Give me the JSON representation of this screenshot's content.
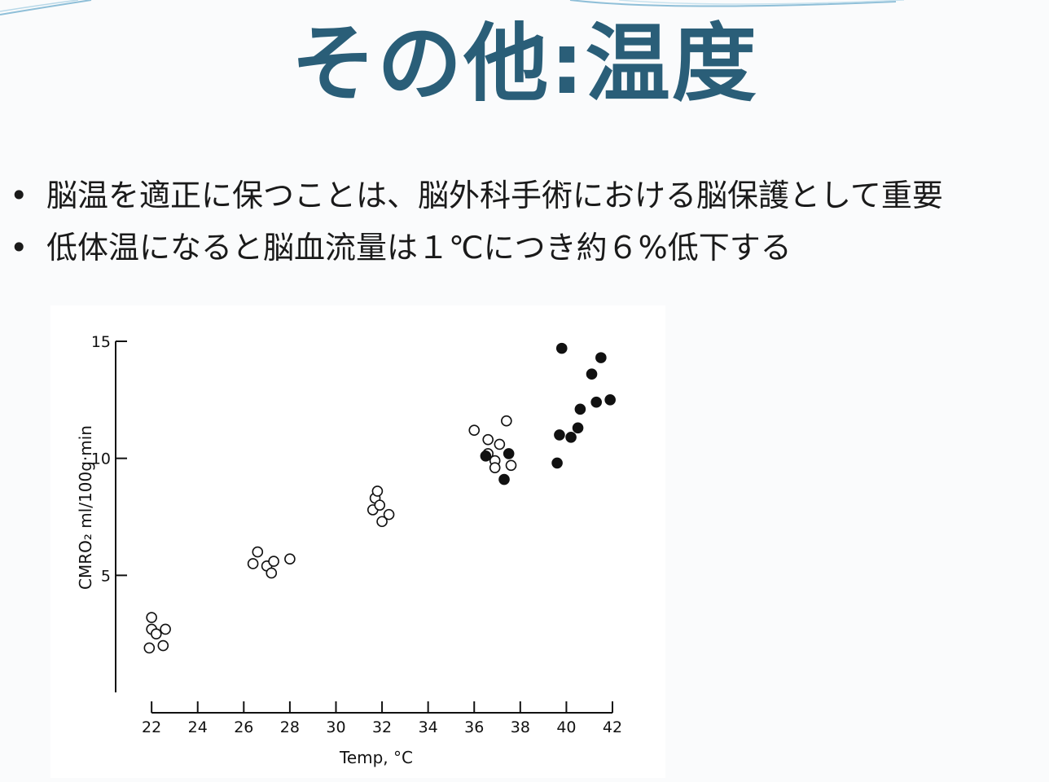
{
  "slide": {
    "title": "その他:温度",
    "bullets": [
      "脳温を適正に保つことは、脳外科手術における脳保護として重要",
      "低体温になると脳血流量は１℃につき約６%低下する"
    ],
    "bullet_marker": "•",
    "title_color": "#2a5e78"
  },
  "chart_data": {
    "type": "scatter",
    "xlabel": "Temp, °C",
    "ylabel": "CMRO₂  ml/100g·min",
    "xlim": [
      21.5,
      42
    ],
    "ylim": [
      0,
      15
    ],
    "xticks": [
      22,
      24,
      26,
      28,
      30,
      32,
      34,
      36,
      38,
      40,
      42
    ],
    "yticks": [
      5,
      10,
      15
    ],
    "series": [
      {
        "marker": "open-circle",
        "points": [
          [
            21.9,
            1.9
          ],
          [
            22.0,
            3.2
          ],
          [
            22.0,
            2.7
          ],
          [
            22.2,
            2.5
          ],
          [
            22.5,
            2.0
          ],
          [
            22.6,
            2.7
          ],
          [
            26.4,
            5.5
          ],
          [
            26.6,
            6.0
          ],
          [
            27.0,
            5.4
          ],
          [
            27.2,
            5.1
          ],
          [
            27.3,
            5.6
          ],
          [
            28.0,
            5.7
          ],
          [
            31.6,
            7.8
          ],
          [
            31.7,
            8.3
          ],
          [
            31.8,
            8.6
          ],
          [
            31.9,
            8.0
          ],
          [
            32.0,
            7.3
          ],
          [
            32.3,
            7.6
          ],
          [
            36.0,
            11.2
          ],
          [
            36.6,
            10.8
          ],
          [
            36.6,
            10.2
          ],
          [
            36.9,
            9.9
          ],
          [
            36.9,
            9.6
          ],
          [
            37.1,
            10.6
          ],
          [
            37.4,
            11.6
          ],
          [
            37.6,
            9.7
          ]
        ]
      },
      {
        "marker": "filled-circle",
        "points": [
          [
            36.5,
            10.1
          ],
          [
            37.3,
            9.1
          ],
          [
            37.5,
            10.2
          ],
          [
            39.6,
            9.8
          ],
          [
            39.7,
            11.0
          ],
          [
            39.8,
            14.7
          ],
          [
            40.2,
            10.9
          ],
          [
            40.5,
            11.3
          ],
          [
            40.6,
            12.1
          ],
          [
            41.1,
            13.6
          ],
          [
            41.3,
            12.4
          ],
          [
            41.5,
            14.3
          ],
          [
            41.9,
            12.5
          ]
        ]
      }
    ]
  }
}
